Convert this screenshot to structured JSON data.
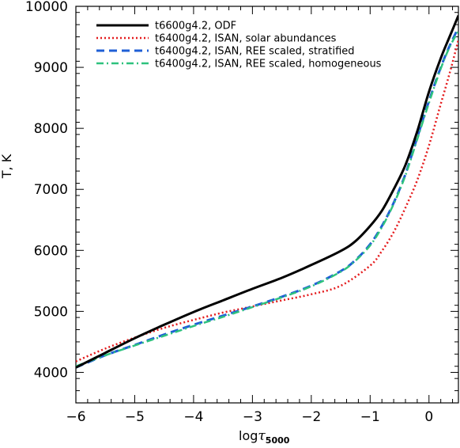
{
  "chart_data": {
    "type": "line",
    "title": "",
    "xlabel": "log",
    "xlabel_symbol": "τ",
    "xlabel_sub": "5000",
    "ylabel": "T, K",
    "xlim": [
      -6,
      0.5
    ],
    "ylim": [
      3500,
      10000
    ],
    "x_ticks": [
      -6,
      -5,
      -4,
      -3,
      -2,
      -1,
      0
    ],
    "x_tick_labels": [
      "−6",
      "−5",
      "−4",
      "−3",
      "−2",
      "−1",
      "0"
    ],
    "y_ticks": [
      4000,
      5000,
      6000,
      7000,
      8000,
      9000,
      10000
    ],
    "y_tick_labels": [
      "4000",
      "5000",
      "6000",
      "7000",
      "8000",
      "9000",
      "10000"
    ],
    "grid": false,
    "legend_position": "top-left",
    "series": [
      {
        "name": "t6600g4.2, ODF",
        "color": "#000000",
        "style": "solid",
        "x": [
          -6,
          -5.5,
          -5,
          -4.5,
          -4,
          -3.5,
          -3,
          -2.5,
          -2,
          -1.5,
          -1.25,
          -1,
          -0.8,
          -0.6,
          -0.4,
          -0.2,
          0,
          0.2,
          0.35,
          0.5
        ],
        "y": [
          4080,
          4320,
          4560,
          4780,
          4990,
          5180,
          5370,
          5550,
          5760,
          5990,
          6150,
          6400,
          6650,
          7000,
          7400,
          7950,
          8600,
          9150,
          9500,
          9850
        ]
      },
      {
        "name": "t6400g4.2, ISAN, solar abundances",
        "color": "#e41a1c",
        "style": "dotted",
        "x": [
          -6,
          -5.5,
          -5,
          -4.5,
          -4,
          -3.5,
          -3,
          -2.5,
          -2,
          -1.5,
          -1,
          -0.8,
          -0.6,
          -0.4,
          -0.2,
          0,
          0.2,
          0.35,
          0.5
        ],
        "y": [
          4180,
          4390,
          4570,
          4730,
          4860,
          4980,
          5080,
          5180,
          5280,
          5420,
          5750,
          5990,
          6300,
          6700,
          7150,
          7720,
          8400,
          8900,
          9450
        ]
      },
      {
        "name": "t6400g4.2, ISAN, REE scaled, stratified",
        "color": "#1f5fd6",
        "style": "dashed",
        "x": [
          -6,
          -5.5,
          -5,
          -4.5,
          -4,
          -3.5,
          -3,
          -2.5,
          -2,
          -1.5,
          -1.25,
          -1,
          -0.8,
          -0.6,
          -0.4,
          -0.2,
          0,
          0.2,
          0.35,
          0.5
        ],
        "y": [
          4080,
          4280,
          4450,
          4620,
          4780,
          4930,
          5080,
          5240,
          5420,
          5660,
          5840,
          6100,
          6400,
          6780,
          7250,
          7850,
          8450,
          9000,
          9350,
          9650
        ]
      },
      {
        "name": "t6400g4.2, ISAN, REE scaled, homogeneous",
        "color": "#2ec27e",
        "style": "dashdot",
        "x": [
          -6,
          -5.5,
          -5,
          -4.5,
          -4,
          -3.5,
          -3,
          -2.5,
          -2,
          -1.5,
          -1.25,
          -1,
          -0.8,
          -0.6,
          -0.4,
          -0.2,
          0,
          0.2,
          0.35,
          0.5
        ],
        "y": [
          4100,
          4280,
          4440,
          4600,
          4760,
          4910,
          5070,
          5230,
          5410,
          5650,
          5830,
          6080,
          6380,
          6760,
          7230,
          7820,
          8420,
          8980,
          9330,
          9600
        ]
      }
    ]
  }
}
